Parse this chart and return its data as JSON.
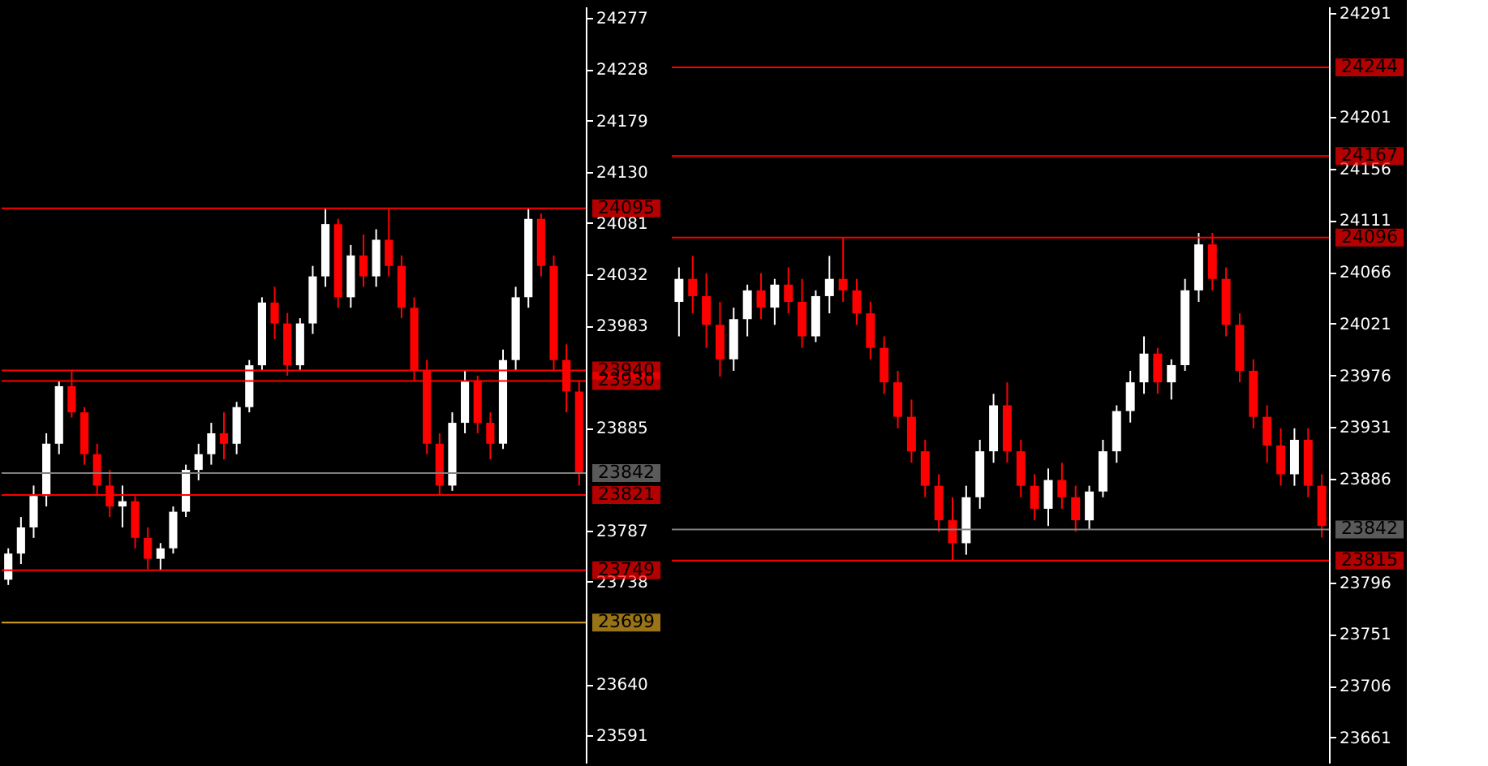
{
  "chart_data": [
    {
      "type": "candlestick",
      "categories": [
        null,
        null,
        null,
        null,
        null,
        null,
        null,
        null,
        null,
        null,
        null,
        null,
        null,
        null,
        null,
        null,
        null,
        null,
        null,
        null,
        null,
        null,
        null,
        null,
        null,
        null,
        null,
        null,
        null,
        null,
        null,
        null,
        null,
        null,
        null,
        null,
        null,
        null,
        null,
        null,
        null,
        null,
        null,
        null,
        null,
        null
      ],
      "ohlc": [
        [
          23740,
          23770,
          23735,
          23765
        ],
        [
          23765,
          23800,
          23755,
          23790
        ],
        [
          23790,
          23830,
          23780,
          23820
        ],
        [
          23820,
          23880,
          23810,
          23870
        ],
        [
          23870,
          23930,
          23860,
          23925
        ],
        [
          23925,
          23940,
          23895,
          23900
        ],
        [
          23900,
          23905,
          23850,
          23860
        ],
        [
          23860,
          23870,
          23820,
          23830
        ],
        [
          23830,
          23845,
          23800,
          23810
        ],
        [
          23810,
          23830,
          23790,
          23815
        ],
        [
          23815,
          23820,
          23770,
          23780
        ],
        [
          23780,
          23790,
          23750,
          23760
        ],
        [
          23760,
          23775,
          23749,
          23770
        ],
        [
          23770,
          23810,
          23765,
          23805
        ],
        [
          23805,
          23850,
          23800,
          23845
        ],
        [
          23845,
          23870,
          23835,
          23860
        ],
        [
          23860,
          23890,
          23850,
          23880
        ],
        [
          23880,
          23900,
          23855,
          23870
        ],
        [
          23870,
          23910,
          23860,
          23905
        ],
        [
          23905,
          23950,
          23900,
          23945
        ],
        [
          23945,
          24010,
          23940,
          24005
        ],
        [
          24005,
          24020,
          23970,
          23985
        ],
        [
          23985,
          23995,
          23935,
          23945
        ],
        [
          23945,
          23990,
          23940,
          23985
        ],
        [
          23985,
          24040,
          23975,
          24030
        ],
        [
          24030,
          24095,
          24020,
          24080
        ],
        [
          24080,
          24085,
          24000,
          24010
        ],
        [
          24010,
          24060,
          24000,
          24050
        ],
        [
          24050,
          24070,
          24020,
          24030
        ],
        [
          24030,
          24075,
          24020,
          24065
        ],
        [
          24065,
          24095,
          24030,
          24040
        ],
        [
          24040,
          24050,
          23990,
          24000
        ],
        [
          24000,
          24010,
          23930,
          23940
        ],
        [
          23940,
          23950,
          23860,
          23870
        ],
        [
          23870,
          23880,
          23821,
          23830
        ],
        [
          23830,
          23900,
          23825,
          23890
        ],
        [
          23890,
          23940,
          23880,
          23930
        ],
        [
          23930,
          23935,
          23880,
          23890
        ],
        [
          23890,
          23900,
          23855,
          23870
        ],
        [
          23870,
          23960,
          23865,
          23950
        ],
        [
          23950,
          24020,
          23940,
          24010
        ],
        [
          24010,
          24095,
          24000,
          24085
        ],
        [
          24085,
          24090,
          24030,
          24040
        ],
        [
          24040,
          24050,
          23940,
          23950
        ],
        [
          23950,
          23965,
          23900,
          23920
        ],
        [
          23920,
          23930,
          23830,
          23842
        ]
      ],
      "colors": [
        "#ffffff",
        "#ffffff",
        "#ffffff",
        "#ffffff",
        "#ffffff",
        "#ff0000",
        "#ff0000",
        "#ff0000",
        "#ff0000",
        "#ffffff",
        "#ff0000",
        "#ff0000",
        "#ffffff",
        "#ffffff",
        "#ffffff",
        "#ffffff",
        "#ffffff",
        "#ff0000",
        "#ffffff",
        "#ffffff",
        "#ffffff",
        "#ff0000",
        "#ff0000",
        "#ffffff",
        "#ffffff",
        "#ffffff",
        "#ff0000",
        "#ffffff",
        "#ff0000",
        "#ffffff",
        "#ff0000",
        "#ff0000",
        "#ff0000",
        "#ff0000",
        "#ff0000",
        "#ffffff",
        "#ffffff",
        "#ff0000",
        "#ff0000",
        "#ffffff",
        "#ffffff",
        "#ffffff",
        "#ff0000",
        "#ff0000",
        "#ff0000",
        "#ff0000"
      ],
      "ylim": [
        23565,
        24288
      ],
      "yticks": [
        24277,
        24228,
        24179,
        24130,
        24081,
        24032,
        23983,
        23885,
        23787,
        23738,
        23640,
        23591
      ],
      "ref_lines": [
        {
          "axis": "y",
          "value": 24095,
          "label": "24095",
          "color": "#ff0000"
        },
        {
          "axis": "y",
          "value": 23940,
          "label": "23940",
          "color": "#ff0000"
        },
        {
          "axis": "y",
          "value": 23930,
          "label": "23930",
          "color": "#ff0000"
        },
        {
          "axis": "y",
          "value": 23842,
          "label": "23842",
          "color": "#808080"
        },
        {
          "axis": "y",
          "value": 23821,
          "label": "23821",
          "color": "#ff0000"
        },
        {
          "axis": "y",
          "value": 23749,
          "label": "23749",
          "color": "#ff0000"
        },
        {
          "axis": "y",
          "value": 23699,
          "label": "23699",
          "color": "#daa520"
        }
      ],
      "tick_labels": "y",
      "grid": false,
      "legend": false
    },
    {
      "type": "candlestick",
      "categories": [
        null,
        null,
        null,
        null,
        null,
        null,
        null,
        null,
        null,
        null,
        null,
        null,
        null,
        null,
        null,
        null,
        null,
        null,
        null,
        null,
        null,
        null,
        null,
        null,
        null,
        null,
        null,
        null,
        null,
        null,
        null,
        null,
        null,
        null,
        null,
        null,
        null,
        null,
        null,
        null,
        null,
        null,
        null,
        null,
        null,
        null,
        null,
        null
      ],
      "ohlc": [
        [
          24040,
          24070,
          24010,
          24060
        ],
        [
          24060,
          24080,
          24030,
          24045
        ],
        [
          24045,
          24065,
          24000,
          24020
        ],
        [
          24020,
          24040,
          23975,
          23990
        ],
        [
          23990,
          24035,
          23980,
          24025
        ],
        [
          24025,
          24055,
          24010,
          24050
        ],
        [
          24050,
          24065,
          24025,
          24035
        ],
        [
          24035,
          24060,
          24020,
          24055
        ],
        [
          24055,
          24070,
          24030,
          24040
        ],
        [
          24040,
          24060,
          24000,
          24010
        ],
        [
          24010,
          24050,
          24005,
          24045
        ],
        [
          24045,
          24080,
          24030,
          24060
        ],
        [
          24060,
          24096,
          24040,
          24050
        ],
        [
          24050,
          24060,
          24020,
          24030
        ],
        [
          24030,
          24040,
          23990,
          24000
        ],
        [
          24000,
          24010,
          23960,
          23970
        ],
        [
          23970,
          23980,
          23930,
          23940
        ],
        [
          23940,
          23955,
          23900,
          23910
        ],
        [
          23910,
          23920,
          23870,
          23880
        ],
        [
          23880,
          23890,
          23840,
          23850
        ],
        [
          23850,
          23870,
          23815,
          23830
        ],
        [
          23830,
          23880,
          23820,
          23870
        ],
        [
          23870,
          23920,
          23860,
          23910
        ],
        [
          23910,
          23960,
          23900,
          23950
        ],
        [
          23950,
          23970,
          23900,
          23910
        ],
        [
          23910,
          23920,
          23870,
          23880
        ],
        [
          23880,
          23890,
          23850,
          23860
        ],
        [
          23860,
          23895,
          23845,
          23885
        ],
        [
          23885,
          23900,
          23860,
          23870
        ],
        [
          23870,
          23880,
          23840,
          23850
        ],
        [
          23850,
          23880,
          23842,
          23875
        ],
        [
          23875,
          23920,
          23870,
          23910
        ],
        [
          23910,
          23950,
          23900,
          23945
        ],
        [
          23945,
          23980,
          23935,
          23970
        ],
        [
          23970,
          24010,
          23960,
          23995
        ],
        [
          23995,
          24000,
          23960,
          23970
        ],
        [
          23970,
          23990,
          23955,
          23985
        ],
        [
          23985,
          24060,
          23980,
          24050
        ],
        [
          24050,
          24100,
          24040,
          24090
        ],
        [
          24090,
          24100,
          24050,
          24060
        ],
        [
          24060,
          24070,
          24010,
          24020
        ],
        [
          24020,
          24030,
          23970,
          23980
        ],
        [
          23980,
          23990,
          23930,
          23940
        ],
        [
          23940,
          23950,
          23900,
          23915
        ],
        [
          23915,
          23930,
          23880,
          23890
        ],
        [
          23890,
          23930,
          23880,
          23920
        ],
        [
          23920,
          23930,
          23870,
          23880
        ],
        [
          23880,
          23890,
          23835,
          23845
        ]
      ],
      "colors": [
        "#ffffff",
        "#ff0000",
        "#ff0000",
        "#ff0000",
        "#ffffff",
        "#ffffff",
        "#ff0000",
        "#ffffff",
        "#ff0000",
        "#ff0000",
        "#ffffff",
        "#ffffff",
        "#ff0000",
        "#ff0000",
        "#ff0000",
        "#ff0000",
        "#ff0000",
        "#ff0000",
        "#ff0000",
        "#ff0000",
        "#ff0000",
        "#ffffff",
        "#ffffff",
        "#ffffff",
        "#ff0000",
        "#ff0000",
        "#ff0000",
        "#ffffff",
        "#ff0000",
        "#ff0000",
        "#ffffff",
        "#ffffff",
        "#ffffff",
        "#ffffff",
        "#ffffff",
        "#ff0000",
        "#ffffff",
        "#ffffff",
        "#ffffff",
        "#ff0000",
        "#ff0000",
        "#ff0000",
        "#ff0000",
        "#ff0000",
        "#ff0000",
        "#ffffff",
        "#ff0000",
        "#ff0000"
      ],
      "ylim": [
        23639,
        24297
      ],
      "yticks": [
        24291,
        24201,
        24156,
        24111,
        24066,
        24021,
        23976,
        23931,
        23886,
        23796,
        23751,
        23706,
        23661
      ],
      "ref_lines": [
        {
          "axis": "y",
          "value": 24244,
          "label": "24244",
          "color": "#ff0000"
        },
        {
          "axis": "y",
          "value": 24167,
          "label": "24167",
          "color": "#ff0000"
        },
        {
          "axis": "y",
          "value": 24096,
          "label": "24096",
          "color": "#ff0000"
        },
        {
          "axis": "y",
          "value": 23842,
          "label": "23842",
          "color": "#808080"
        },
        {
          "axis": "y",
          "value": 23815,
          "label": "23815",
          "color": "#ff0000"
        }
      ],
      "tick_labels": "y",
      "grid": false,
      "legend": false
    }
  ]
}
